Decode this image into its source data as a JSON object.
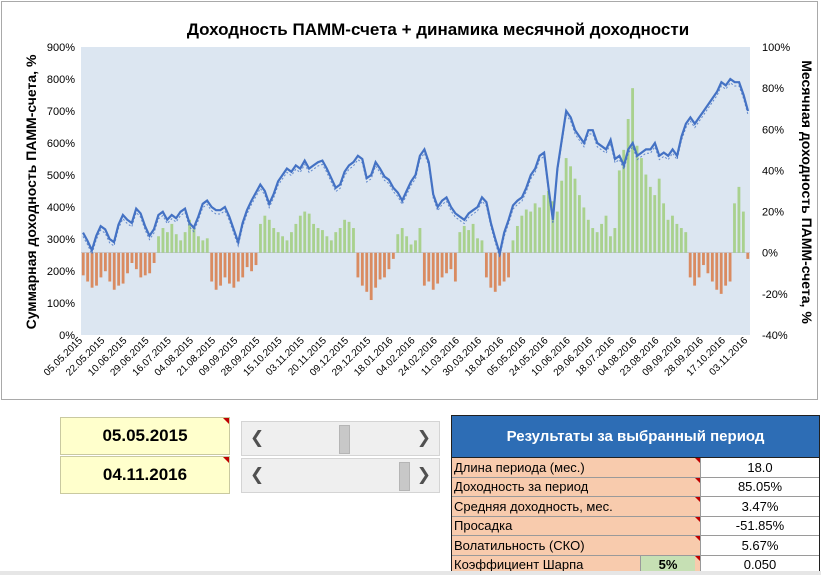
{
  "chart_data": {
    "type": "line+bar",
    "title": "Доходность ПАММ-счета + динамика месячной доходности",
    "ylabel_left": "Суммарная доходность ПАММ-счета, %",
    "ylabel_right": "Месячная доходность ПАММ-счета, %",
    "y_left_ticks": [
      "0%",
      "100%",
      "200%",
      "300%",
      "400%",
      "500%",
      "600%",
      "700%",
      "800%",
      "900%"
    ],
    "y_left_range": [
      0,
      900
    ],
    "y_right_ticks": [
      "-40%",
      "-20%",
      "0%",
      "20%",
      "40%",
      "60%",
      "80%",
      "100%"
    ],
    "y_right_range": [
      -40,
      100
    ],
    "x_tick_labels": [
      "05.05.2015",
      "22.05.2015",
      "10.06.2015",
      "29.06.2015",
      "16.07.2015",
      "04.08.2015",
      "21.08.2015",
      "09.09.2015",
      "28.09.2015",
      "15.10.2015",
      "03.11.2015",
      "20.11.2015",
      "09.12.2015",
      "29.12.2015",
      "18.01.2016",
      "04.02.2016",
      "24.02.2016",
      "11.03.2016",
      "30.03.2016",
      "18.04.2016",
      "05.05.2016",
      "24.05.2016",
      "10.06.2016",
      "29.06.2016",
      "18.07.2016",
      "04.08.2016",
      "23.08.2016",
      "09.09.2016",
      "28.09.2016",
      "17.10.2016",
      "03.11.2016"
    ],
    "cumulative_return": [
      320,
      295,
      265,
      310,
      340,
      330,
      300,
      290,
      345,
      375,
      360,
      350,
      395,
      380,
      340,
      310,
      330,
      375,
      385,
      360,
      375,
      365,
      385,
      395,
      350,
      335,
      370,
      410,
      420,
      400,
      390,
      390,
      400,
      370,
      330,
      290,
      350,
      390,
      420,
      445,
      470,
      450,
      410,
      440,
      480,
      500,
      520,
      510,
      530,
      520,
      545,
      520,
      530,
      540,
      545,
      520,
      490,
      460,
      470,
      510,
      530,
      540,
      560,
      550,
      490,
      500,
      540,
      520,
      495,
      485,
      460,
      445,
      420,
      450,
      480,
      500,
      560,
      580,
      540,
      440,
      400,
      420,
      430,
      400,
      380,
      370,
      360,
      380,
      390,
      400,
      430,
      415,
      350,
      300,
      255,
      320,
      360,
      405,
      420,
      430,
      460,
      500,
      520,
      560,
      570,
      460,
      360,
      520,
      610,
      700,
      680,
      640,
      620,
      600,
      640,
      640,
      600,
      590,
      580,
      610,
      550,
      560,
      530,
      580,
      600,
      560,
      570,
      580,
      580,
      600,
      560,
      570,
      560,
      580,
      560,
      620,
      660,
      680,
      660,
      680,
      700,
      720,
      740,
      760,
      790,
      780,
      800,
      790,
      790,
      750,
      700
    ],
    "monthly_return": [
      -11,
      -14,
      -17,
      -16,
      -12,
      -9,
      -14,
      -18,
      -16,
      -15,
      -10,
      -5,
      -8,
      -12,
      -11,
      -10,
      -5,
      8,
      12,
      10,
      14,
      9,
      6,
      10,
      16,
      12,
      8,
      6,
      7,
      -14,
      -18,
      -16,
      -12,
      -15,
      -17,
      -14,
      -12,
      -7,
      -9,
      -6,
      14,
      18,
      16,
      12,
      10,
      8,
      6,
      10,
      14,
      18,
      20,
      19,
      14,
      12,
      11,
      8,
      6,
      10,
      12,
      16,
      15,
      12,
      -12,
      -16,
      -19,
      -23,
      -17,
      -13,
      -12,
      -8,
      -3,
      9,
      12,
      8,
      4,
      6,
      12,
      -16,
      -14,
      -18,
      -15,
      -12,
      -10,
      -8,
      -14,
      10,
      13,
      11,
      14,
      7,
      6,
      -12,
      -17,
      -19,
      -16,
      -14,
      -12,
      6,
      13,
      18,
      21,
      20,
      24,
      22,
      28,
      30,
      25,
      20,
      35,
      46,
      42,
      36,
      28,
      22,
      16,
      12,
      10,
      14,
      18,
      8,
      12,
      40,
      50,
      65,
      80,
      52,
      46,
      38,
      32,
      28,
      36,
      24,
      16,
      18,
      14,
      12,
      10,
      -12,
      -16,
      -12,
      -6,
      -10,
      -14,
      -18,
      -20,
      -16,
      -14,
      24,
      32,
      20,
      -3
    ]
  },
  "controls": {
    "date_start": "05.05.2015",
    "date_end": "04.11.2016"
  },
  "results": {
    "title": "Результаты за выбранный период",
    "rows": [
      {
        "label": "Длина периода (мес.)",
        "value": "18.0"
      },
      {
        "label": "Доходность за период",
        "value": "85.05%"
      },
      {
        "label": "Средняя доходность, мес.",
        "value": "3.47%"
      },
      {
        "label": "Просадка",
        "value": "-51.85%"
      },
      {
        "label": "Волатильность (СКО)",
        "value": "5.67%"
      },
      {
        "label": "Коэффициент Шарпа",
        "value": "0.050",
        "rate": "5%"
      }
    ]
  },
  "colors": {
    "line": "#4472c4",
    "positive_bar": "#a9d18e",
    "negative_bar": "#d98b61",
    "plot_bg": "#dce6f1",
    "results_header": "#2d6db5",
    "label_bg": "#f8cbad",
    "date_bg": "#ffffcc"
  },
  "icons": {
    "slider_left": "chevron-left-icon",
    "slider_right": "chevron-right-icon"
  }
}
